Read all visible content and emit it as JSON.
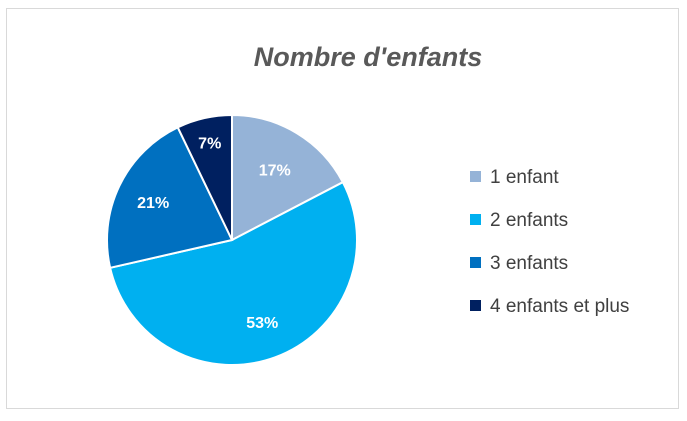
{
  "chart_data": {
    "type": "pie",
    "title": "Nombre d'enfants",
    "categories": [
      "1 enfant",
      "2 enfants",
      "3 enfants",
      "4 enfants et plus"
    ],
    "values": [
      17,
      53,
      21,
      7
    ],
    "value_labels": [
      "17%",
      "53%",
      "21%",
      "7%"
    ],
    "colors": [
      "#95b3d7",
      "#00b0f0",
      "#0070c0",
      "#002060"
    ],
    "legend_position": "right"
  }
}
